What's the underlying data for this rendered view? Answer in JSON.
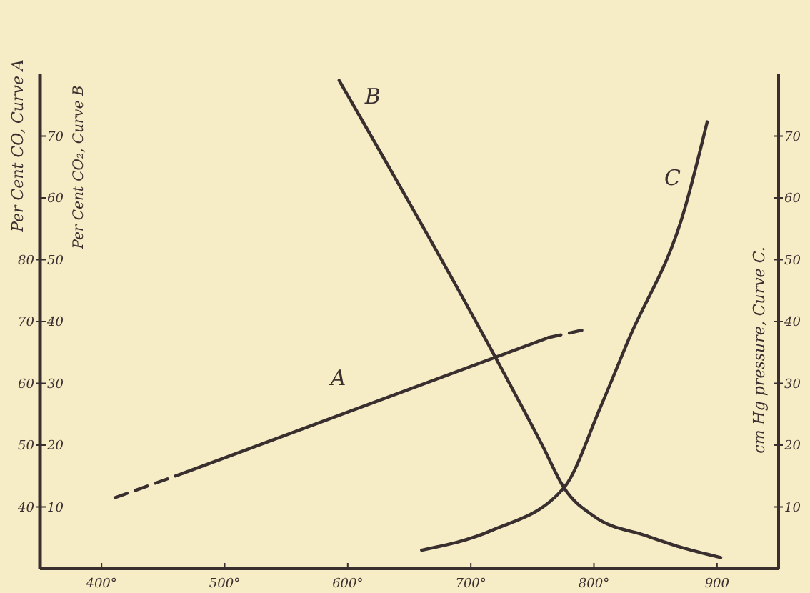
{
  "chart_data": {
    "type": "line",
    "xlabel": null,
    "ylabel": "Per Cent CO₂, Curve B",
    "y2label": "cm Hg pressure, Curve C.",
    "y3label": "Per Cent CO, Curve A",
    "xlim": [
      350,
      950
    ],
    "xticks": [
      {
        "value": 400,
        "label": "400°"
      },
      {
        "value": 500,
        "label": "500°"
      },
      {
        "value": 600,
        "label": "600°"
      },
      {
        "value": 700,
        "label": "700°"
      },
      {
        "value": 800,
        "label": "800°"
      },
      {
        "value": 900,
        "label": "900"
      }
    ],
    "ylim": [
      0,
      80
    ],
    "yticks": [
      10,
      20,
      30,
      40,
      50,
      60,
      70
    ],
    "y2lim": [
      0,
      80
    ],
    "y2ticks": [
      10,
      20,
      30,
      40,
      50,
      60,
      70
    ],
    "y3lim": [
      30,
      110
    ],
    "y3ticks": [
      40,
      50,
      60,
      70,
      80
    ],
    "grid": false,
    "marker": "none",
    "series": [
      {
        "name": "A",
        "color": "#3a2f2f",
        "axis": "y3",
        "line_style": "solid",
        "x": [
          467,
          763
        ],
        "values": [
          45.5,
          67.4
        ]
      },
      {
        "color": "#3a2f2f",
        "axis": "y3",
        "line_style": "dashed",
        "x": [
          411,
          467
        ],
        "values": [
          41.5,
          45.5
        ]
      },
      {
        "color": "#3a2f2f",
        "axis": "y3",
        "line_style": "dashed",
        "x": [
          763,
          795
        ],
        "values": [
          67.4,
          68.8
        ]
      },
      {
        "name": "B",
        "color": "#3a2f2f",
        "axis": "y",
        "line_style": "solid",
        "x": [
          593,
          717,
          758,
          776,
          800,
          843,
          870,
          903
        ],
        "values": [
          79,
          35.3,
          20,
          13,
          8.5,
          5.3,
          3.5,
          1.8
        ]
      },
      {
        "name": "C",
        "color": "#3a2f2f",
        "axis": "y2",
        "line_style": "solid",
        "x": [
          660,
          717,
          776,
          805,
          828,
          874,
          892
        ],
        "values": [
          3,
          6.2,
          13.2,
          26,
          37,
          58.4,
          72.3
        ]
      }
    ]
  }
}
